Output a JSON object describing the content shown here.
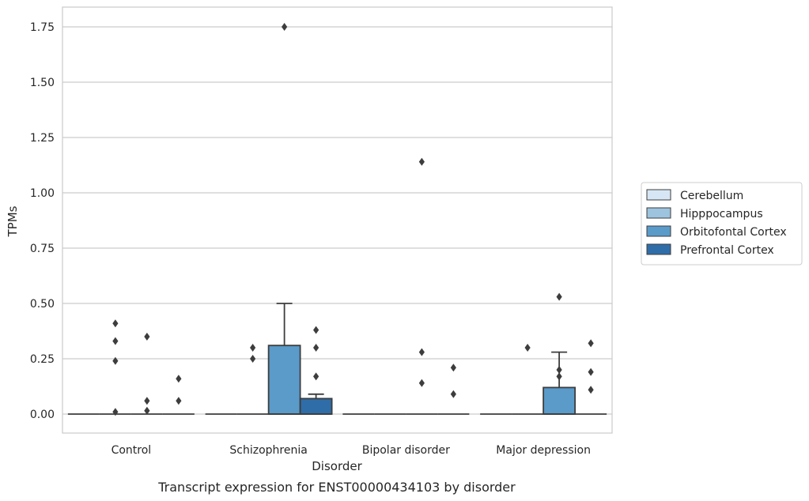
{
  "chart_data": {
    "type": "box",
    "title": "Transcript expression for ENST00000434103 by disorder",
    "xlabel": "Disorder",
    "ylabel": "TPMs",
    "ylim": [
      -0.085,
      1.84
    ],
    "yticks": [
      0.0,
      0.25,
      0.5,
      0.75,
      1.0,
      1.25,
      1.5,
      1.75
    ],
    "ytick_labels": [
      "0.00",
      "0.25",
      "0.50",
      "0.75",
      "1.00",
      "1.25",
      "1.50",
      "1.75"
    ],
    "grid": true,
    "legend_position": "right",
    "categories": [
      "Control",
      "Schizophrenia",
      "Bipolar disorder",
      "Major depression"
    ],
    "series": [
      {
        "name": "Cerebellum",
        "color": "#d6e6f4",
        "boxes": [
          {
            "q1": 0,
            "median": 0,
            "q3": 0,
            "whislo": 0,
            "whishi": 0,
            "fliers": []
          },
          {
            "q1": 0,
            "median": 0,
            "q3": 0,
            "whislo": 0,
            "whishi": 0,
            "fliers": []
          },
          {
            "q1": 0,
            "median": 0,
            "q3": 0,
            "whislo": 0,
            "whishi": 0,
            "fliers": []
          },
          {
            "q1": 0,
            "median": 0,
            "q3": 0,
            "whislo": 0,
            "whishi": 0,
            "fliers": []
          }
        ]
      },
      {
        "name": "Hipppocampus",
        "color": "#9dc3de",
        "boxes": [
          {
            "q1": 0,
            "median": 0,
            "q3": 0,
            "whislo": 0,
            "whishi": 0,
            "fliers": [
              0.41,
              0.33,
              0.24,
              0.01
            ]
          },
          {
            "q1": 0,
            "median": 0,
            "q3": 0,
            "whislo": 0,
            "whishi": 0,
            "fliers": [
              0.3,
              0.25
            ]
          },
          {
            "q1": 0,
            "median": 0,
            "q3": 0,
            "whislo": 0,
            "whishi": 0,
            "fliers": []
          },
          {
            "q1": 0,
            "median": 0,
            "q3": 0,
            "whislo": 0,
            "whishi": 0,
            "fliers": [
              0.3
            ]
          }
        ]
      },
      {
        "name": "Orbitofontal Cortex",
        "color": "#5a9bca",
        "boxes": [
          {
            "q1": 0,
            "median": 0,
            "q3": 0,
            "whislo": 0,
            "whishi": 0,
            "fliers": [
              0.35,
              0.06,
              0.015
            ]
          },
          {
            "q1": 0,
            "median": 0,
            "q3": 0.31,
            "whislo": 0,
            "whishi": 0.5,
            "fliers": [
              1.75
            ]
          },
          {
            "q1": 0,
            "median": 0,
            "q3": 0,
            "whislo": 0,
            "whishi": 0,
            "fliers": [
              1.14,
              0.28,
              0.14
            ]
          },
          {
            "q1": 0,
            "median": 0,
            "q3": 0.12,
            "whislo": 0,
            "whishi": 0.28,
            "fliers": [
              0.53,
              0.2,
              0.17
            ]
          }
        ]
      },
      {
        "name": "Prefrontal Cortex",
        "color": "#2f6da8",
        "boxes": [
          {
            "q1": 0,
            "median": 0,
            "q3": 0,
            "whislo": 0,
            "whishi": 0,
            "fliers": [
              0.16,
              0.06
            ]
          },
          {
            "q1": 0,
            "median": 0,
            "q3": 0.07,
            "whislo": 0,
            "whishi": 0.09,
            "fliers": [
              0.38,
              0.3,
              0.17
            ]
          },
          {
            "q1": 0,
            "median": 0,
            "q3": 0,
            "whislo": 0,
            "whishi": 0,
            "fliers": [
              0.21,
              0.09
            ]
          },
          {
            "q1": 0,
            "median": 0,
            "q3": 0,
            "whislo": 0,
            "whishi": 0,
            "fliers": [
              0.32,
              0.19,
              0.11
            ]
          }
        ]
      }
    ]
  }
}
